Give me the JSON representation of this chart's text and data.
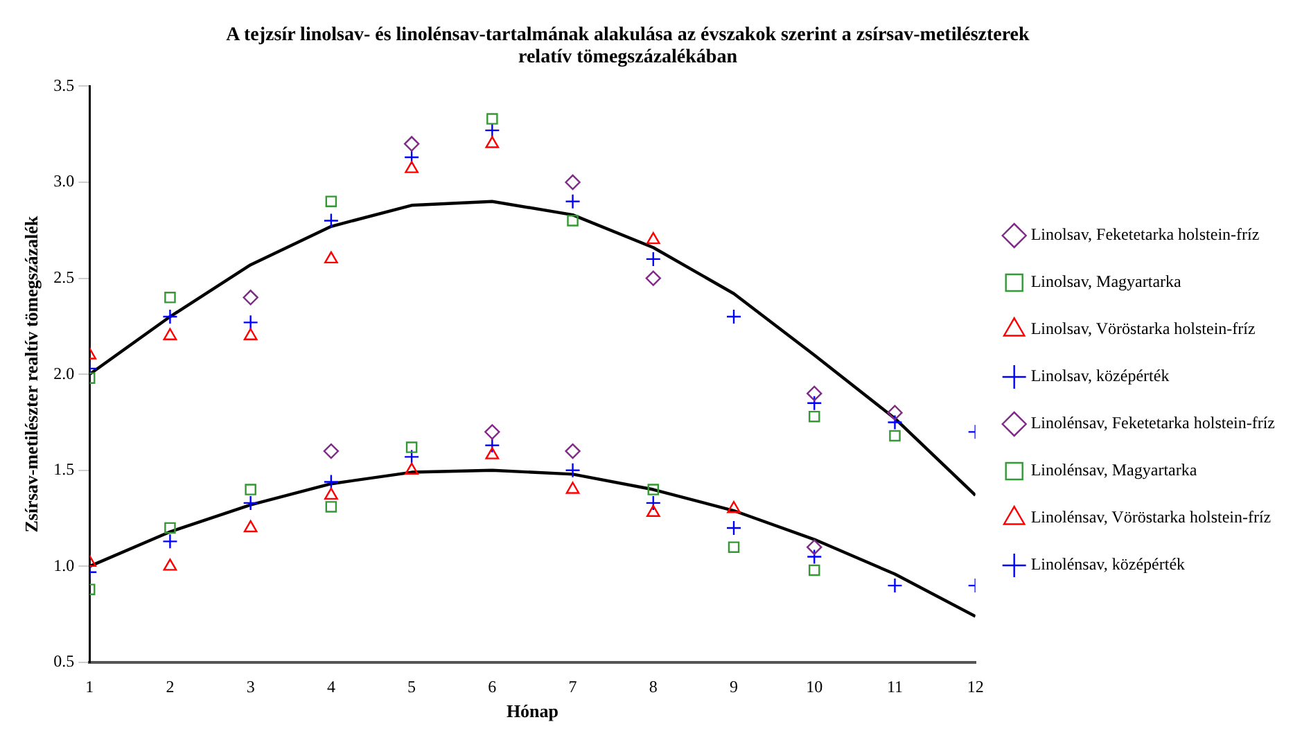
{
  "chart_data": {
    "type": "scatter",
    "title": "A tejzsír linolsav- és linolénsav-tartalmának alakulása az évszakok szerint a zsírsav-metilészterek relatív tömegszázalékában",
    "xlabel": "Hónap",
    "ylabel": "Zsírsav-metilészter realtív tömegszázalék",
    "x": [
      1,
      2,
      3,
      4,
      5,
      6,
      7,
      8,
      9,
      10,
      11,
      12
    ],
    "xlim": [
      1,
      12
    ],
    "xticks": [
      1,
      2,
      3,
      4,
      5,
      6,
      7,
      8,
      9,
      10,
      11,
      12
    ],
    "ylim": [
      0.5,
      3.5
    ],
    "yticks": [
      {
        "value": 0.5,
        "label": "0.5"
      },
      {
        "value": 1,
        "label": "1.0"
      },
      {
        "value": 1.5,
        "label": "1.5"
      },
      {
        "value": 2,
        "label": "2.0"
      },
      {
        "value": 2.5,
        "label": "2.5"
      },
      {
        "value": 3,
        "label": "3.0"
      },
      {
        "value": 3.5,
        "label": "3.5"
      }
    ],
    "grid": false,
    "legend": "right",
    "series": [
      {
        "name": "Linolsav, Feketetarka holstein-fríz",
        "color": "#7f2a86",
        "marker": "diamond",
        "values": [
          null,
          null,
          2.4,
          null,
          3.2,
          null,
          3.0,
          2.5,
          null,
          1.9,
          1.8,
          null
        ]
      },
      {
        "name": "Linolsav, Magyartarka",
        "color": "#339933",
        "marker": "square",
        "values": [
          1.98,
          2.4,
          null,
          2.9,
          null,
          3.33,
          2.8,
          null,
          null,
          1.78,
          1.68,
          null
        ]
      },
      {
        "name": "Linolsav, Vöröstarka holstein-fríz",
        "color": "#ff0000",
        "marker": "triangle",
        "values": [
          2.1,
          2.2,
          2.2,
          2.6,
          3.07,
          3.2,
          null,
          2.7,
          null,
          null,
          null,
          null
        ]
      },
      {
        "name": "Linolsav, középérték",
        "color": "#0000ff",
        "marker": "cross",
        "values": [
          2.03,
          2.3,
          2.27,
          2.8,
          3.13,
          3.27,
          2.9,
          2.6,
          2.3,
          1.85,
          1.75,
          1.7
        ]
      },
      {
        "name": "Linolénsav, Feketetarka holstein-fríz",
        "color": "#7f2a86",
        "marker": "diamond",
        "values": [
          null,
          null,
          null,
          1.6,
          null,
          1.7,
          1.6,
          null,
          null,
          1.1,
          null,
          null
        ]
      },
      {
        "name": "Linolénsav, Magyartarka",
        "color": "#339933",
        "marker": "square",
        "values": [
          0.88,
          1.2,
          1.4,
          1.31,
          1.62,
          null,
          null,
          1.4,
          1.1,
          0.98,
          null,
          null
        ]
      },
      {
        "name": "Linolénsav, Vöröstarka holstein-fríz",
        "color": "#ff0000",
        "marker": "triangle",
        "values": [
          1.02,
          1.0,
          1.2,
          1.37,
          1.5,
          1.58,
          1.4,
          1.28,
          1.3,
          null,
          null,
          null
        ]
      },
      {
        "name": "Linolénsav, középérték",
        "color": "#0000ff",
        "marker": "cross",
        "values": [
          0.97,
          1.13,
          1.33,
          1.44,
          1.57,
          1.63,
          1.5,
          1.33,
          1.2,
          1.05,
          0.9,
          0.9
        ]
      },
      {
        "type": "line",
        "color": "#000000",
        "marker": "none",
        "line_style": "solid",
        "x": [
          1,
          2,
          3,
          4,
          5,
          6,
          7,
          8,
          9,
          10,
          11,
          12
        ],
        "values": [
          2.0,
          2.3,
          2.57,
          2.77,
          2.88,
          2.9,
          2.83,
          2.66,
          2.42,
          2.1,
          1.77,
          1.37
        ]
      },
      {
        "type": "line",
        "color": "#000000",
        "marker": "none",
        "line_style": "solid",
        "x": [
          1,
          2,
          3,
          4,
          5,
          6,
          7,
          8,
          9,
          10,
          11,
          12
        ],
        "values": [
          1.0,
          1.18,
          1.32,
          1.43,
          1.49,
          1.5,
          1.48,
          1.4,
          1.29,
          1.14,
          0.96,
          0.74
        ]
      }
    ]
  }
}
